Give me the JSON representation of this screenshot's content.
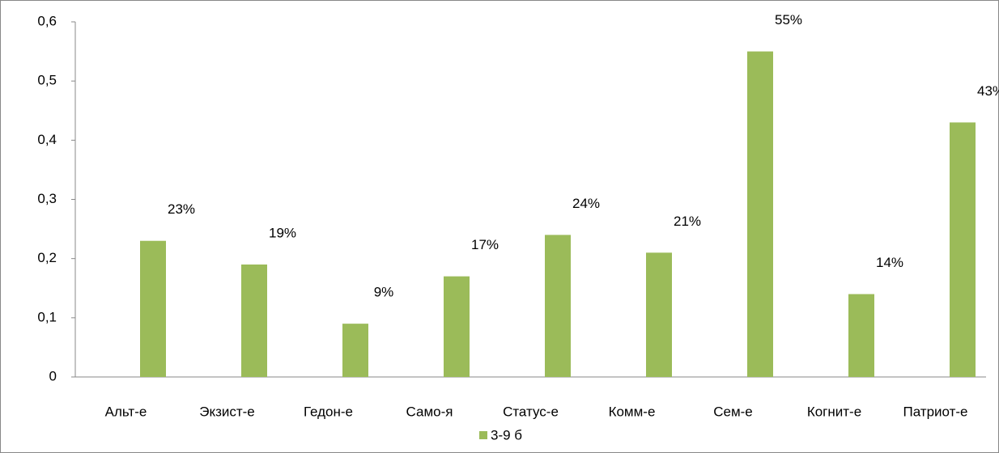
{
  "chart_data": {
    "type": "bar",
    "categories": [
      "Альт-е",
      "Экзист-е",
      "Гедон-е",
      "Само-я",
      "Статус-е",
      "Комм-е",
      "Сем-е",
      "Когнит-е",
      "Патриот-е"
    ],
    "series": [
      {
        "name": "3-9 б",
        "color": "#9bbb59",
        "values": [
          0.23,
          0.19,
          0.09,
          0.17,
          0.24,
          0.21,
          0.55,
          0.14,
          0.43
        ],
        "value_labels": [
          "23%",
          "19%",
          "9%",
          "17%",
          "24%",
          "21%",
          "55%",
          "14%",
          "43%"
        ]
      }
    ],
    "ylim": [
      0,
      0.6
    ],
    "yticks": [
      0,
      {
        "value": 0.1,
        "label": "0,1"
      },
      {
        "value": 0.2,
        "label": "0,2"
      },
      {
        "value": 0.3,
        "label": "0,3"
      },
      {
        "value": 0.4,
        "label": "0,4"
      },
      {
        "value": 0.5,
        "label": "0,5"
      },
      {
        "value": 0.6,
        "label": "0,6"
      }
    ],
    "grid": false,
    "legend": "bottom"
  }
}
